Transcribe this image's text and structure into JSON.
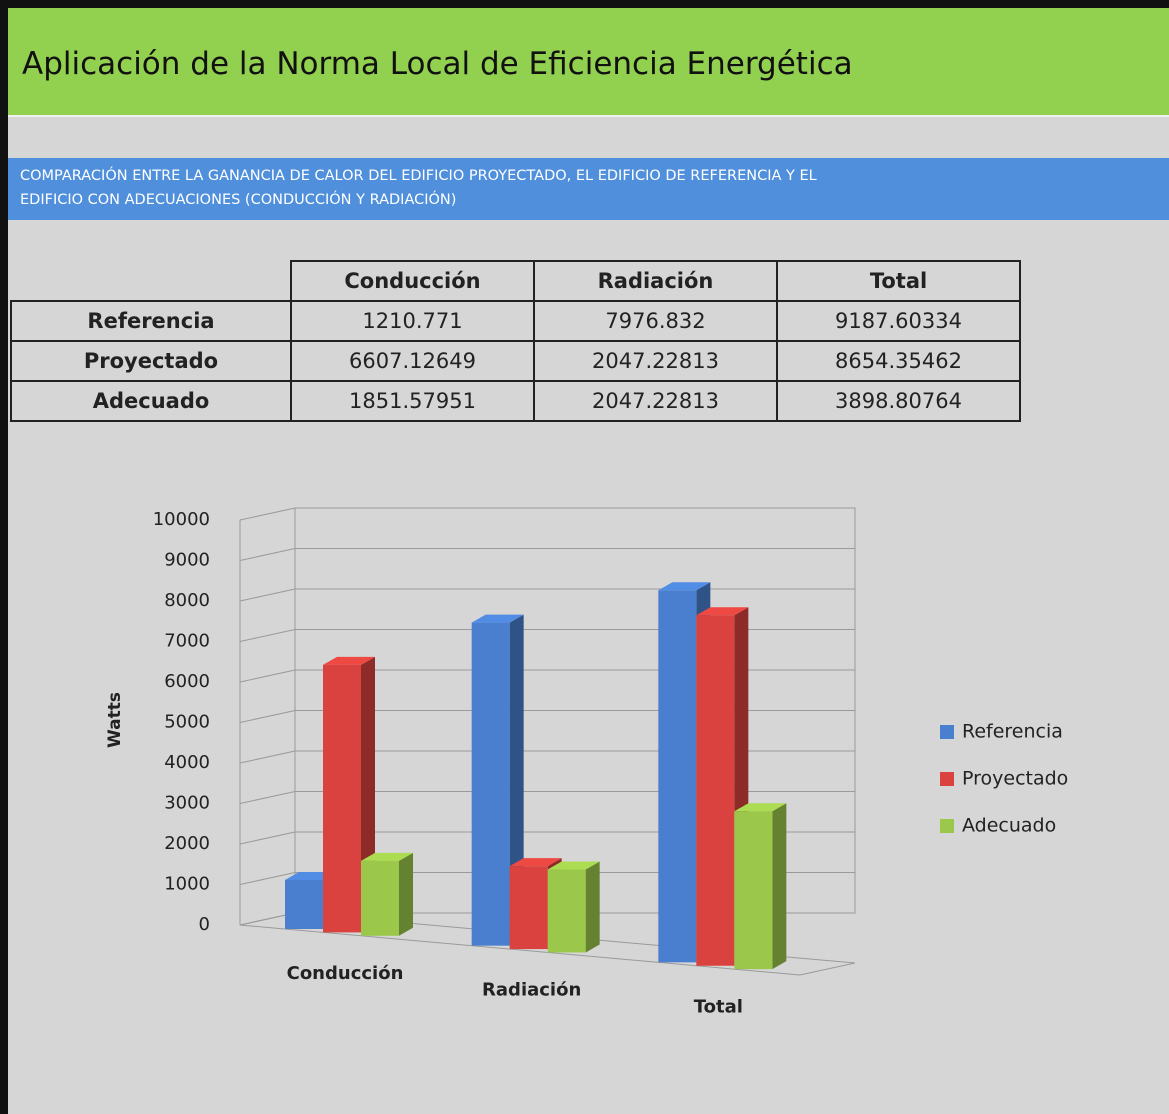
{
  "header": {
    "title": "Aplicación de la Norma Local de Eficiencia Energética"
  },
  "banner": {
    "lines": [
      "COMPARACIÓN ENTRE LA GANANCIA DE CALOR DEL EDIFICIO PROYECTADO, EL EDIFICIO DE REFERENCIA  Y EL",
      "EDIFICIO CON ADECUACIONES (CONDUCCIÓN Y RADIACIÓN)"
    ]
  },
  "table": {
    "columns": [
      "Conducción",
      "Radiación",
      "Total"
    ],
    "rows": [
      [
        "Referencia",
        "1210.771",
        "7976.832",
        "9187.60334"
      ],
      [
        "Proyectado",
        "6607.12649",
        "2047.22813",
        "8654.35462"
      ],
      [
        "Adecuado",
        "1851.57951",
        "2047.22813",
        "3898.80764"
      ]
    ]
  },
  "chart_data": {
    "type": "bar3d",
    "y_label": "Watts",
    "categories": [
      "Conducción",
      "Radiación",
      "Total"
    ],
    "series": [
      {
        "name": "Referencia",
        "color": "#4a7fd0",
        "values": [
          1210.771,
          7976.832,
          9187.60334
        ]
      },
      {
        "name": "Proyectado",
        "color": "#d9423e",
        "values": [
          6607.12649,
          2047.22813,
          8654.35462
        ]
      },
      {
        "name": "Adecuado",
        "color": "#9bc84a",
        "values": [
          1851.57951,
          2047.22813,
          3898.80764
        ]
      }
    ],
    "ylim": [
      0,
      10000
    ],
    "yticks": [
      0,
      1000,
      2000,
      3000,
      4000,
      5000,
      6000,
      7000,
      8000,
      9000,
      10000
    ],
    "grid": true,
    "legend": "right"
  }
}
